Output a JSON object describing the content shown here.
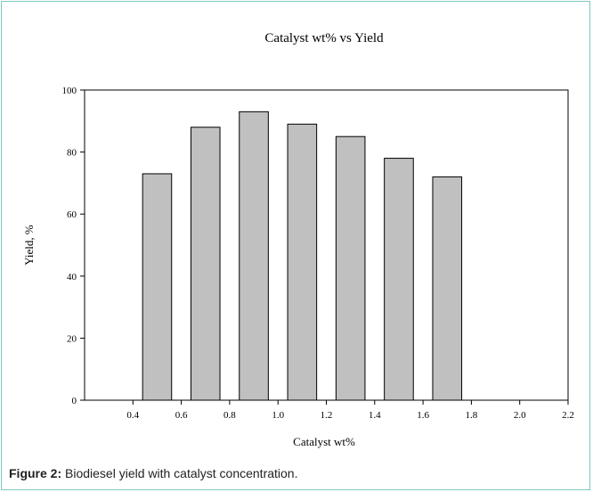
{
  "chart_data": {
    "type": "bar",
    "title": "Catalyst wt% vs Yield",
    "xlabel": "Catalyst wt%",
    "ylabel": "Yield, %",
    "ylim": [
      0,
      100
    ],
    "yticks": [
      0,
      20,
      40,
      60,
      80,
      100
    ],
    "xlim": [
      0.2,
      2.2
    ],
    "xticks": [
      0.4,
      0.6,
      0.8,
      1.0,
      1.2,
      1.4,
      1.6,
      1.8,
      2.0,
      2.2
    ],
    "xtick_labels": [
      "0.4",
      "0.6",
      "0.8",
      "1.0",
      "1.2",
      "1.4",
      "1.6",
      "1.8",
      "2.0",
      "2.2"
    ],
    "bar_width": 0.12,
    "x": [
      0.5,
      0.7,
      0.9,
      1.1,
      1.3,
      1.5,
      1.7
    ],
    "values": [
      73,
      88,
      93,
      89,
      85,
      78,
      72
    ],
    "bar_color": "#c0c0c0",
    "grid": false,
    "legend": "none"
  },
  "caption": {
    "label": "Figure 2:",
    "text": " Biodiesel yield with catalyst concentration."
  }
}
